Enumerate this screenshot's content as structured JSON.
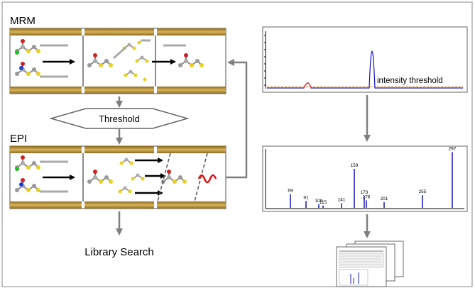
{
  "labels": {
    "mrm": "MRM",
    "threshold": "Threshold",
    "epi": "EPI",
    "library_search": "Library Search",
    "intensity_threshold": "intensity threshold"
  },
  "colors": {
    "gold_rail": "#c8a040",
    "chromatogram_line": "#1010c8",
    "threshold_line": "#e8a050",
    "noise_line": "#e83030",
    "spectrum_peaks": "#2020c0",
    "sine_wave": "#e01010",
    "flow_arrow": "#7f7f7f"
  },
  "icons": {
    "molecule": "ball-and-stick-molecule-icon",
    "report": "report-document-stack-icon"
  },
  "spectrum": {
    "peaks": [
      {
        "mz": 69,
        "label": "69",
        "height": 0.24
      },
      {
        "mz": 91,
        "label": "91",
        "height": 0.12
      },
      {
        "mz": 109,
        "label": "109",
        "height": 0.06
      },
      {
        "mz": 115,
        "label": "115",
        "height": 0.04
      },
      {
        "mz": 141,
        "label": "141",
        "height": 0.08
      },
      {
        "mz": 159,
        "label": "159",
        "height": 0.68
      },
      {
        "mz": 173,
        "label": "173",
        "height": 0.21
      },
      {
        "mz": 176,
        "label": "176",
        "height": 0.13
      },
      {
        "mz": 201,
        "label": "201",
        "height": 0.1
      },
      {
        "mz": 255,
        "label": "255",
        "height": 0.22
      },
      {
        "mz": 297,
        "label": "297",
        "height": 0.97
      }
    ],
    "xlim": [
      40,
      310
    ]
  }
}
